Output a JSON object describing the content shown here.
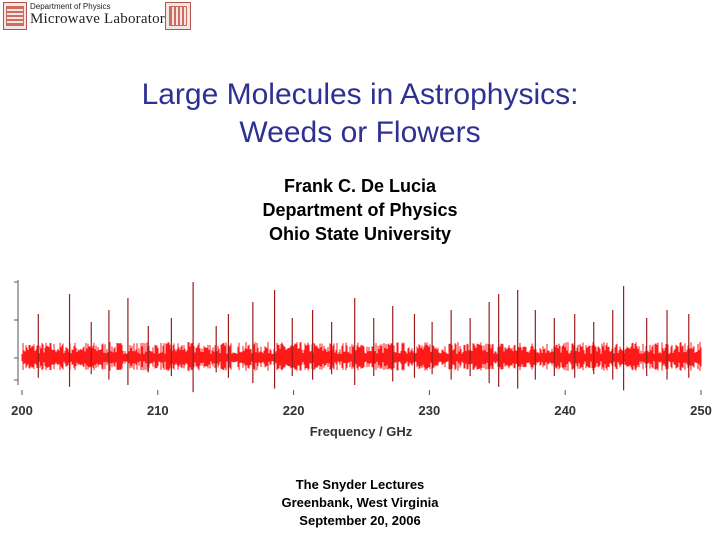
{
  "header": {
    "department": "Department of Physics",
    "laboratory": "Microwave Laboratory"
  },
  "title": {
    "line1": "Large Molecules in Astrophysics:",
    "line2": "Weeds or Flowers"
  },
  "author": {
    "name": "Frank C. De Lucia",
    "department": "Department of Physics",
    "university": "Ohio State University"
  },
  "chart_data": {
    "type": "line",
    "xlabel": "Frequency / GHz",
    "xlim": [
      200,
      250
    ],
    "xticks": [
      "200",
      "210",
      "220",
      "230",
      "240",
      "250"
    ],
    "tick_values": [
      200,
      210,
      220,
      230,
      240,
      250
    ],
    "ylim": [
      -1,
      1
    ],
    "grid": false,
    "legend": "none",
    "colors": {
      "dense": "#ff1a1a",
      "lines": "#9b1c1c"
    },
    "x": [
      201.2,
      203.5,
      205.1,
      206.4,
      207.8,
      209.3,
      211.0,
      212.6,
      214.3,
      215.2,
      217.0,
      218.6,
      219.9,
      221.4,
      222.8,
      224.5,
      225.9,
      227.3,
      228.9,
      230.2,
      231.6,
      233.0,
      234.4,
      235.1,
      236.5,
      237.8,
      239.2,
      240.7,
      242.1,
      243.5,
      244.3,
      246.0,
      247.5,
      249.1
    ],
    "y": [
      0.55,
      0.8,
      0.45,
      0.6,
      0.75,
      0.4,
      0.5,
      0.95,
      0.4,
      0.55,
      0.7,
      0.85,
      0.5,
      0.6,
      0.45,
      0.75,
      0.5,
      0.65,
      0.55,
      0.45,
      0.6,
      0.5,
      0.7,
      0.8,
      0.85,
      0.6,
      0.5,
      0.55,
      0.45,
      0.6,
      0.9,
      0.5,
      0.6,
      0.55
    ]
  },
  "footer": {
    "line1": "The Snyder Lectures",
    "line2": "Greenbank, West Virginia",
    "line3": "September 20, 2006"
  }
}
